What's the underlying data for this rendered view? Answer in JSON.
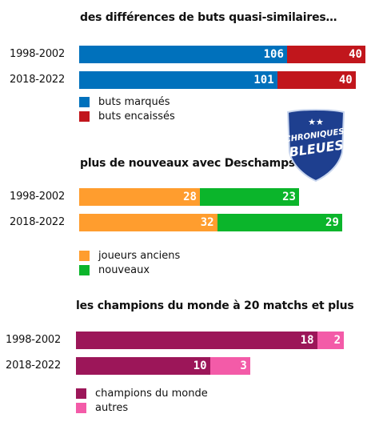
{
  "chart_data": [
    {
      "type": "bar",
      "orientation": "horizontal",
      "stacked": true,
      "title": "des différences de buts quasi-similaires…",
      "categories": [
        "1998-2002",
        "2018-2022"
      ],
      "series": [
        {
          "name": "buts marqués",
          "color": "#0071bc",
          "values": [
            106,
            101
          ]
        },
        {
          "name": "buts encaissés",
          "color": "#c1161c",
          "values": [
            40,
            40
          ]
        }
      ],
      "legend": "bottom-left"
    },
    {
      "type": "bar",
      "orientation": "horizontal",
      "stacked": true,
      "title": "plus de nouveaux avec Deschamps",
      "categories": [
        "1998-2002",
        "2018-2022"
      ],
      "series": [
        {
          "name": "joueurs anciens",
          "color": "#ff9d2e",
          "values": [
            28,
            32
          ]
        },
        {
          "name": "nouveaux",
          "color": "#0bb52b",
          "values": [
            23,
            29
          ]
        }
      ],
      "legend": "bottom-left"
    },
    {
      "type": "bar",
      "orientation": "horizontal",
      "stacked": true,
      "title": "les champions du monde à 20 matchs et plus",
      "categories": [
        "1998-2002",
        "2018-2022"
      ],
      "series": [
        {
          "name": "champions du monde",
          "color": "#9c1659",
          "values": [
            18,
            10
          ]
        },
        {
          "name": "autres",
          "color": "#f35ba8",
          "values": [
            2,
            3
          ]
        }
      ],
      "legend": "bottom-left"
    }
  ],
  "logo": {
    "line1": "CHRONIQUES",
    "line2": "BLEUES",
    "stars": "★★",
    "colors": {
      "shield": "#1e3f8f",
      "text": "#ffffff",
      "star": "#ffffff"
    }
  }
}
